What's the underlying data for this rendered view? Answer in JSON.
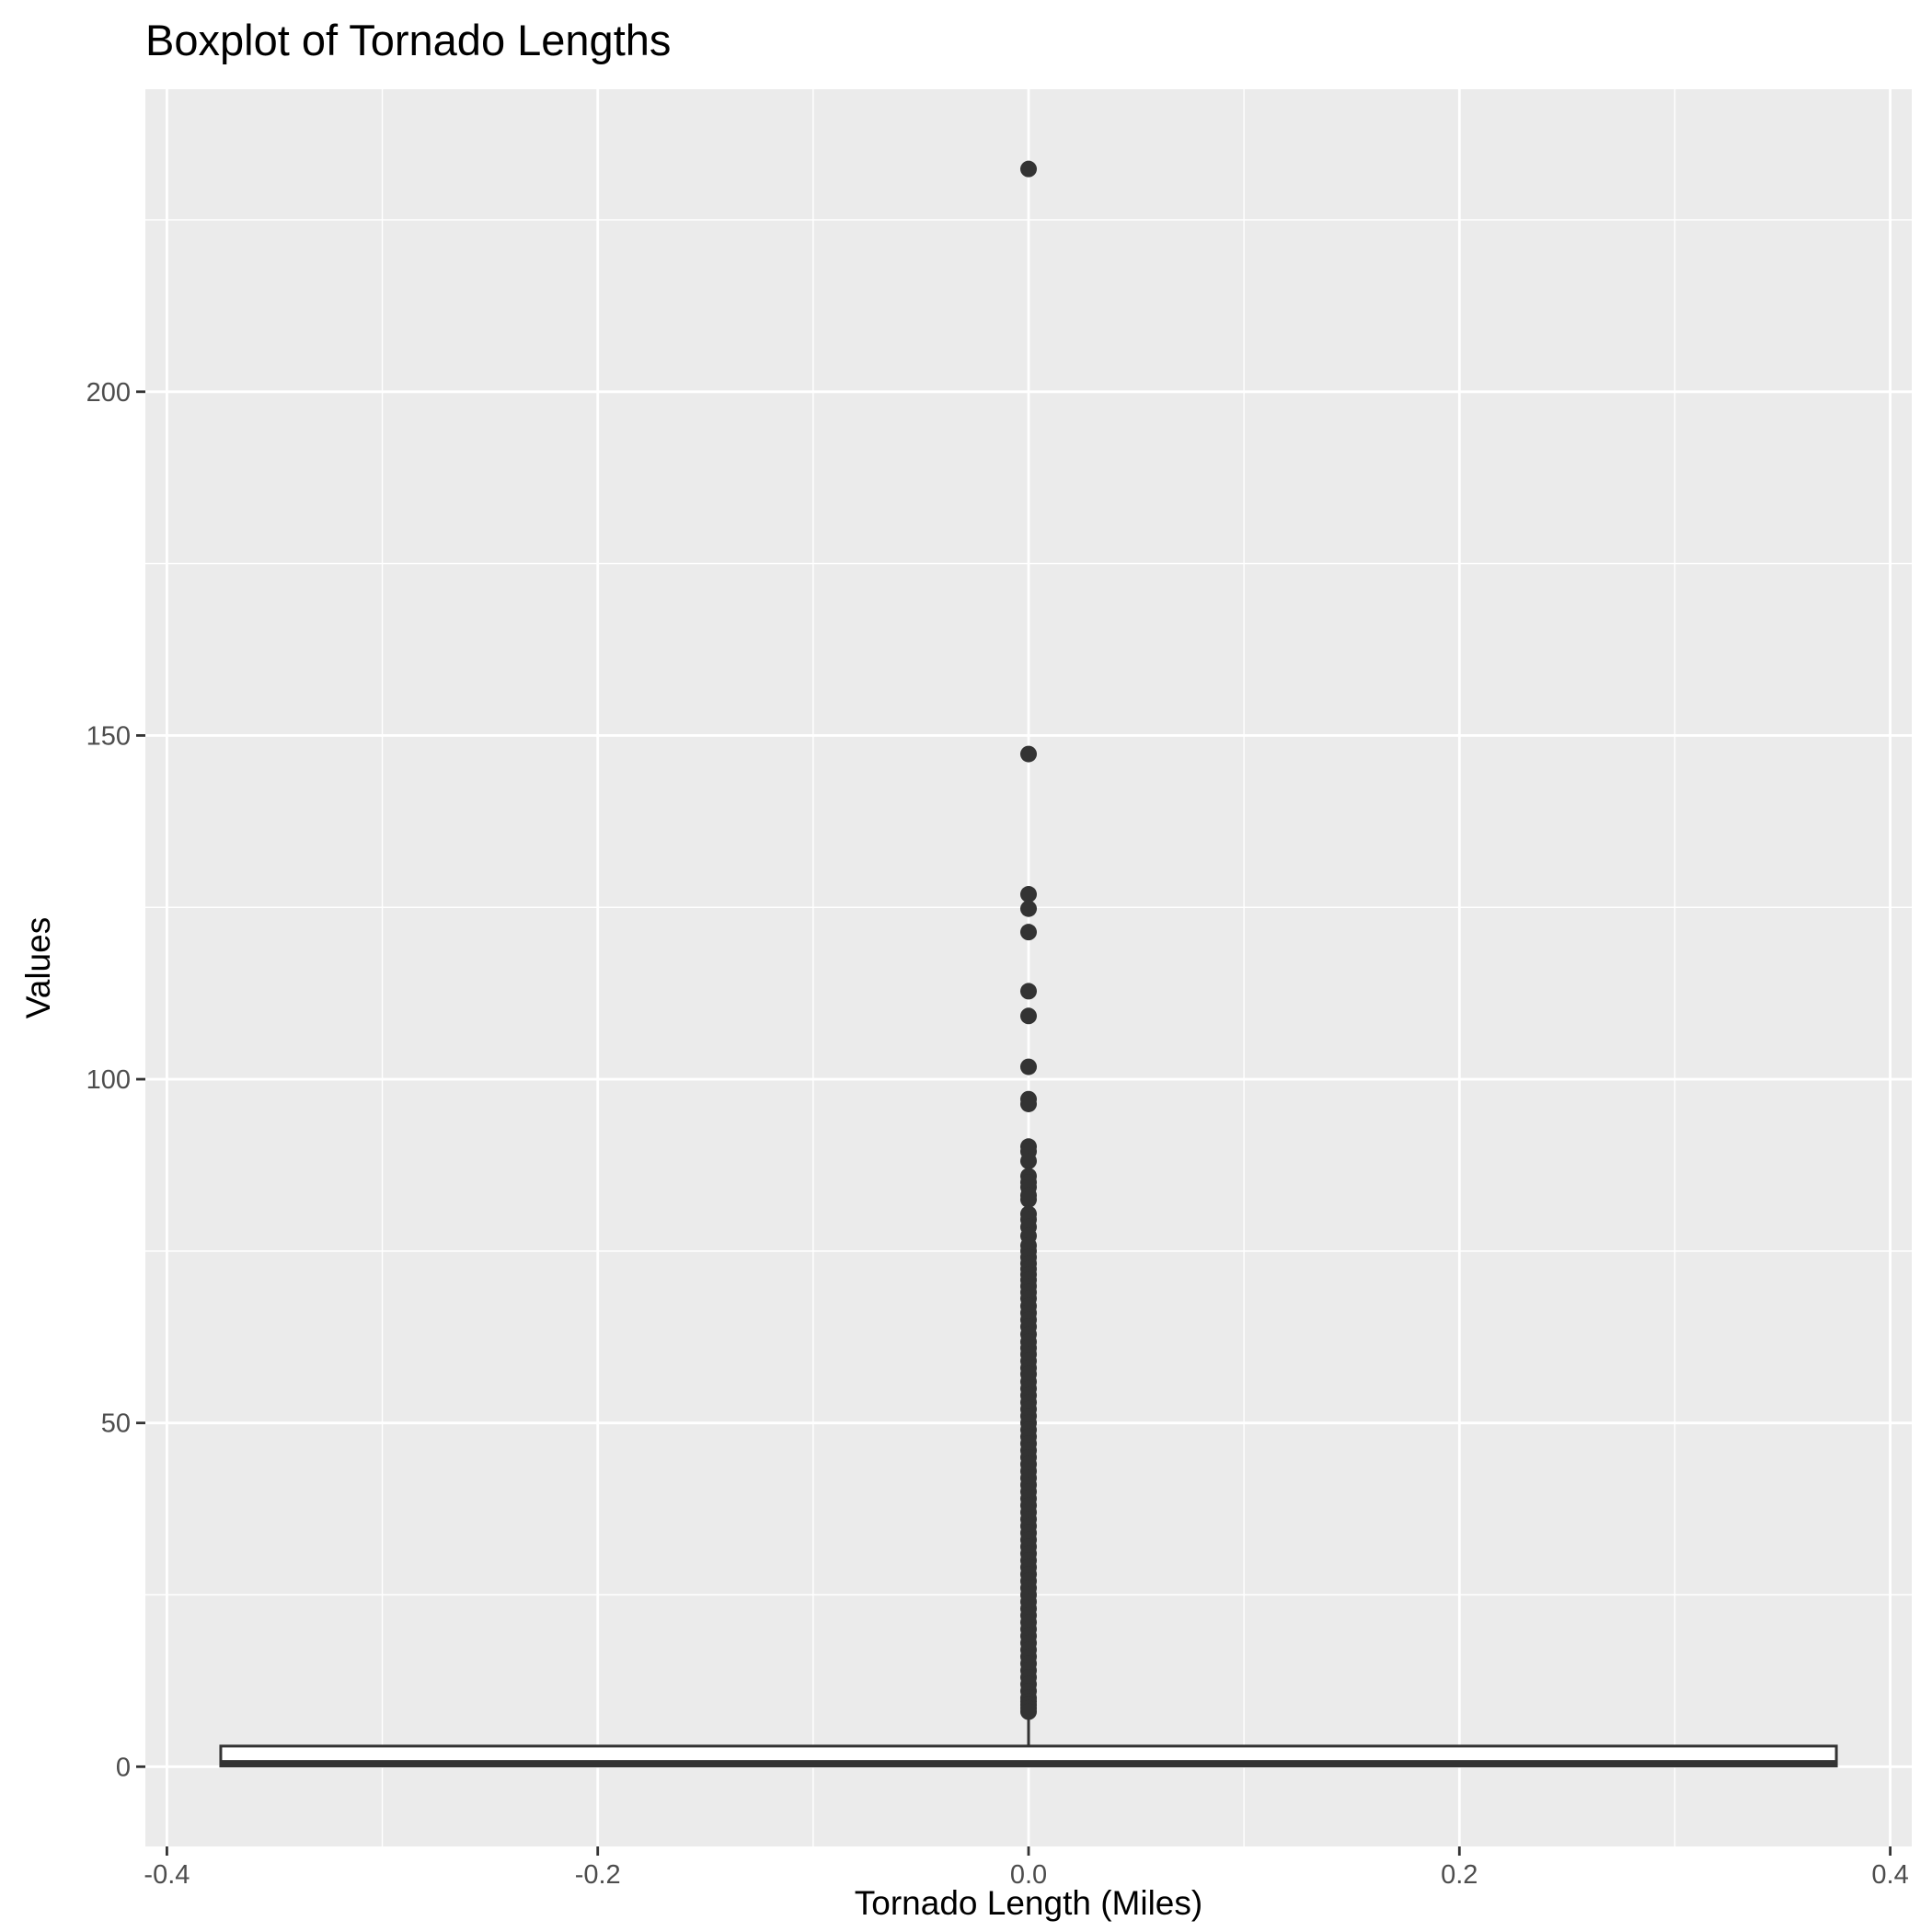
{
  "chart_data": {
    "type": "boxplot",
    "title": "Boxplot of Tornado Lengths",
    "xlabel": "Tornado Length (Miles)",
    "ylabel": "Values",
    "xlim": [
      -0.41,
      0.41
    ],
    "ylim": [
      -11.6,
      244
    ],
    "x_ticks": [
      -0.4,
      -0.2,
      0.0,
      0.2,
      0.4
    ],
    "x_tick_labels": [
      "-0.4",
      "-0.2",
      "0.0",
      "0.2",
      "0.4"
    ],
    "y_ticks": [
      0,
      50,
      100,
      150,
      200
    ],
    "y_tick_labels": [
      "0",
      "50",
      "100",
      "150",
      "200"
    ],
    "grid": true,
    "legend": "none",
    "colors": {
      "panel": "#ebebeb",
      "grid": "#ffffff",
      "box_line": "#333333",
      "box_fill": "#ffffff",
      "outlier": "#333333"
    },
    "box": {
      "x_center": 0.0,
      "x_min": -0.375,
      "x_max": 0.375,
      "min": 0.0,
      "q1": 0.1,
      "median": 0.5,
      "q3": 3.0,
      "whisker_high": 7.5
    },
    "outliers": [
      232.4,
      147.3,
      126.9,
      124.8,
      121.4,
      112.8,
      109.2,
      101.8,
      97.1,
      96.4,
      90.2,
      89.5,
      88.1,
      85.9,
      85.0,
      84.3,
      83.1,
      82.5,
      80.4,
      79.6,
      78.5,
      77.2,
      75.8,
      75.0,
      74.1,
      73.2,
      72.4,
      71.6,
      70.8,
      69.9,
      69.0,
      68.1,
      67.0,
      66.0,
      65.0,
      64.0,
      62.9,
      61.8,
      60.9,
      60.0,
      59.0,
      58.0,
      57.1,
      56.0,
      55.0,
      54.0,
      53.0,
      52.0,
      51.0,
      50.0,
      49.0,
      48.0,
      47.0,
      46.0,
      45.0,
      44.0,
      43.0,
      42.0,
      41.0,
      40.0,
      39.0,
      38.0,
      37.0,
      36.0,
      35.0,
      34.0,
      33.0,
      32.0,
      31.0,
      30.0,
      29.0,
      28.0,
      27.0,
      26.0,
      25.0,
      24.0,
      23.0,
      22.0,
      21.0,
      20.0,
      19.0,
      18.0,
      17.0,
      16.0,
      15.0,
      14.0,
      13.0,
      12.0,
      11.0,
      10.0,
      9.5,
      9.0,
      8.5,
      8.0
    ]
  }
}
